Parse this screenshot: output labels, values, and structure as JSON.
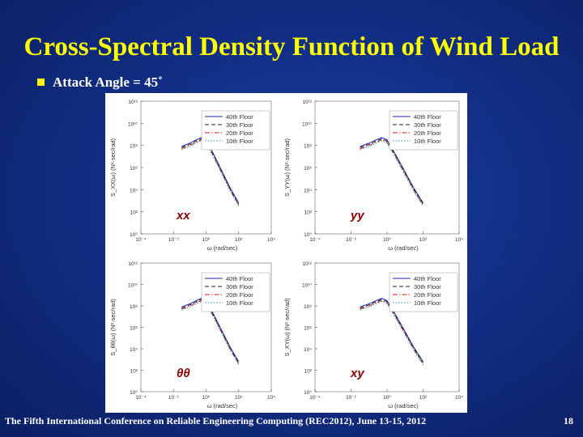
{
  "slide": {
    "title": "Cross-Spectral Density Function of Wind Load",
    "bullet": "Attack Angle = 45˚",
    "footer": "The Fifth International Conference on Reliable Engineering Computing (REC2012), June 13-15, 2012",
    "page_number": "18",
    "colors": {
      "title": "#ffff00",
      "bullet": "#ffff00",
      "text": "#ffffff",
      "panel_label": "#8b0000"
    }
  },
  "chart_data": [
    {
      "type": "line",
      "panel_label": "xx",
      "xlabel": "ω (rad/sec)",
      "ylabel": "S_XX(ω) (N²·sec/rad)",
      "x_ticks": [
        "10⁻⁴",
        "10⁻²",
        "10⁰",
        "10²",
        "10⁴"
      ],
      "y_ticks": [
        "10¹²",
        "10¹⁰",
        "10⁸",
        "10⁶",
        "10⁴",
        "10²",
        "10⁰"
      ],
      "xlim": [
        -4,
        4
      ],
      "ylim": [
        0,
        12
      ],
      "x_scale": "log",
      "y_scale": "log",
      "legend_position": "top-right",
      "series": [
        {
          "name": "40th Floor",
          "color": "#1f2bbf",
          "dash": "solid",
          "x": [
            -1.5,
            -1.0,
            -0.6,
            -0.3,
            0.0,
            0.5,
            1.0,
            1.5,
            2.0
          ],
          "y": [
            7.9,
            8.2,
            8.5,
            8.7,
            8.5,
            7.1,
            5.6,
            4.1,
            2.8
          ]
        },
        {
          "name": "30th Floor",
          "color": "#222222",
          "dash": "dashed",
          "x": [
            -1.5,
            -1.0,
            -0.6,
            -0.3,
            0.0,
            0.5,
            1.0,
            1.5,
            2.0
          ],
          "y": [
            7.8,
            8.1,
            8.4,
            8.6,
            8.4,
            7.0,
            5.5,
            4.0,
            2.7
          ]
        },
        {
          "name": "20th Floor",
          "color": "#cc2222",
          "dash": "dashdot",
          "x": [
            -1.5,
            -1.0,
            -0.6,
            -0.3,
            0.0,
            0.5,
            1.0,
            1.5,
            2.0
          ],
          "y": [
            7.7,
            8.0,
            8.3,
            8.5,
            8.3,
            6.9,
            5.4,
            3.9,
            2.6
          ]
        },
        {
          "name": "10th Floor",
          "color": "#2aa7a7",
          "dash": "dotted",
          "x": [
            -1.5,
            -1.0,
            -0.6,
            -0.3,
            0.0,
            0.5,
            1.0,
            1.5,
            2.0
          ],
          "y": [
            7.6,
            7.9,
            8.2,
            8.4,
            8.2,
            6.8,
            5.3,
            3.8,
            2.5
          ]
        }
      ]
    },
    {
      "type": "line",
      "panel_label": "yy",
      "xlabel": "ω (rad/sec)",
      "ylabel": "S_YY(ω) (N²·sec/rad)",
      "x_ticks": [
        "10⁻⁴",
        "10⁻²",
        "10⁰",
        "10²",
        "10⁴"
      ],
      "y_ticks": [
        "10¹²",
        "10¹⁰",
        "10⁸",
        "10⁶",
        "10⁴",
        "10²",
        "10⁰"
      ],
      "xlim": [
        -4,
        4
      ],
      "ylim": [
        0,
        12
      ],
      "x_scale": "log",
      "y_scale": "log",
      "legend_position": "top-right",
      "series": [
        {
          "name": "40th Floor",
          "color": "#1f2bbf",
          "dash": "solid",
          "x": [
            -1.5,
            -1.0,
            -0.6,
            -0.3,
            0.0,
            0.5,
            1.0,
            1.5,
            2.0
          ],
          "y": [
            7.9,
            8.2,
            8.5,
            8.7,
            8.5,
            7.1,
            5.6,
            4.1,
            2.8
          ]
        },
        {
          "name": "30th Floor",
          "color": "#222222",
          "dash": "dashed",
          "x": [
            -1.5,
            -1.0,
            -0.6,
            -0.3,
            0.0,
            0.5,
            1.0,
            1.5,
            2.0
          ],
          "y": [
            7.8,
            8.1,
            8.4,
            8.6,
            8.4,
            7.0,
            5.5,
            4.0,
            2.7
          ]
        },
        {
          "name": "20th Floor",
          "color": "#cc2222",
          "dash": "dashdot",
          "x": [
            -1.5,
            -1.0,
            -0.6,
            -0.3,
            0.0,
            0.5,
            1.0,
            1.5,
            2.0
          ],
          "y": [
            7.7,
            8.0,
            8.3,
            8.5,
            8.3,
            6.9,
            5.4,
            3.9,
            2.6
          ]
        },
        {
          "name": "10th Floor",
          "color": "#2aa7a7",
          "dash": "dotted",
          "x": [
            -1.5,
            -1.0,
            -0.6,
            -0.3,
            0.0,
            0.5,
            1.0,
            1.5,
            2.0
          ],
          "y": [
            7.6,
            7.9,
            8.2,
            8.4,
            8.2,
            6.8,
            5.3,
            3.8,
            2.5
          ]
        }
      ]
    },
    {
      "type": "line",
      "panel_label": "θθ",
      "xlabel": "ω (rad/sec)",
      "ylabel": "S_θθ(ω) (N²·sec/rad)",
      "x_ticks": [
        "10⁻⁴",
        "10⁻²",
        "10⁰",
        "10²",
        "10⁴"
      ],
      "y_ticks": [
        "10¹²",
        "10¹⁰",
        "10⁸",
        "10⁶",
        "10⁴",
        "10²",
        "10⁰"
      ],
      "xlim": [
        -4,
        4
      ],
      "ylim": [
        0,
        12
      ],
      "x_scale": "log",
      "y_scale": "log",
      "legend_position": "top-right",
      "series": [
        {
          "name": "40th Floor",
          "color": "#1f2bbf",
          "dash": "solid",
          "x": [
            -1.5,
            -1.0,
            -0.6,
            -0.3,
            0.0,
            0.5,
            1.0,
            1.5,
            2.0
          ],
          "y": [
            7.9,
            8.2,
            8.5,
            8.7,
            8.5,
            7.1,
            5.6,
            4.1,
            2.8
          ]
        },
        {
          "name": "30th Floor",
          "color": "#222222",
          "dash": "dashed",
          "x": [
            -1.5,
            -1.0,
            -0.6,
            -0.3,
            0.0,
            0.5,
            1.0,
            1.5,
            2.0
          ],
          "y": [
            7.8,
            8.1,
            8.4,
            8.6,
            8.4,
            7.0,
            5.5,
            4.0,
            2.7
          ]
        },
        {
          "name": "20th Floor",
          "color": "#cc2222",
          "dash": "dashdot",
          "x": [
            -1.5,
            -1.0,
            -0.6,
            -0.3,
            0.0,
            0.5,
            1.0,
            1.5,
            2.0
          ],
          "y": [
            7.7,
            8.0,
            8.3,
            8.5,
            8.3,
            6.9,
            5.4,
            3.9,
            2.6
          ]
        },
        {
          "name": "10th Floor",
          "color": "#2aa7a7",
          "dash": "dotted",
          "x": [
            -1.5,
            -1.0,
            -0.6,
            -0.3,
            0.0,
            0.5,
            1.0,
            1.5,
            2.0
          ],
          "y": [
            7.6,
            7.9,
            8.2,
            8.4,
            8.2,
            6.8,
            5.3,
            3.8,
            2.5
          ]
        }
      ]
    },
    {
      "type": "line",
      "panel_label": "xy",
      "xlabel": "ω (rad/sec)",
      "ylabel": "S_XY(ω) (N²·sec/rad)",
      "x_ticks": [
        "10⁻⁴",
        "10⁻²",
        "10⁰",
        "10²",
        "10⁴"
      ],
      "y_ticks": [
        "10¹²",
        "10¹⁰",
        "10⁸",
        "10⁶",
        "10⁴",
        "10²",
        "10⁰"
      ],
      "xlim": [
        -4,
        4
      ],
      "ylim": [
        0,
        12
      ],
      "x_scale": "log",
      "y_scale": "log",
      "legend_position": "top-right",
      "series": [
        {
          "name": "40th Floor",
          "color": "#1f2bbf",
          "dash": "solid",
          "x": [
            -1.5,
            -1.0,
            -0.6,
            -0.3,
            0.0,
            0.5,
            1.0,
            1.5,
            2.0
          ],
          "y": [
            7.9,
            8.2,
            8.5,
            8.7,
            8.5,
            7.1,
            5.6,
            4.1,
            2.8
          ]
        },
        {
          "name": "30th Floor",
          "color": "#222222",
          "dash": "dashed",
          "x": [
            -1.5,
            -1.0,
            -0.6,
            -0.3,
            0.0,
            0.5,
            1.0,
            1.5,
            2.0
          ],
          "y": [
            7.8,
            8.1,
            8.4,
            8.6,
            8.4,
            7.0,
            5.5,
            4.0,
            2.7
          ]
        },
        {
          "name": "20th Floor",
          "color": "#cc2222",
          "dash": "dashdot",
          "x": [
            -1.5,
            -1.0,
            -0.6,
            -0.3,
            0.0,
            0.5,
            1.0,
            1.5,
            2.0
          ],
          "y": [
            7.7,
            8.0,
            8.3,
            8.5,
            8.3,
            6.9,
            5.4,
            3.9,
            2.6
          ]
        },
        {
          "name": "10th Floor",
          "color": "#2aa7a7",
          "dash": "dotted",
          "x": [
            -1.5,
            -1.0,
            -0.6,
            -0.3,
            0.0,
            0.5,
            1.0,
            1.5,
            2.0
          ],
          "y": [
            7.6,
            7.9,
            8.2,
            8.4,
            8.2,
            6.8,
            5.3,
            3.8,
            2.5
          ]
        }
      ]
    }
  ]
}
